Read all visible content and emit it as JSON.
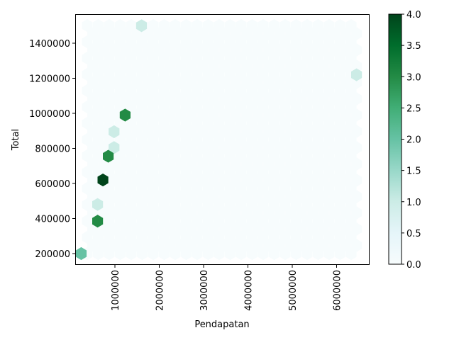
{
  "chart_data": {
    "type": "heatmap",
    "subtype": "hexbin",
    "title": "",
    "xlabel": "Pendapatan",
    "ylabel": "Total",
    "xlim": [
      -50000,
      6800000
    ],
    "ylim": [
      135000,
      1535000
    ],
    "xticks": [
      1000000,
      2000000,
      3000000,
      4000000,
      5000000,
      6000000
    ],
    "xtick_labels": [
      "1000000",
      "2000000",
      "3000000",
      "4000000",
      "5000000",
      "6000000"
    ],
    "xtick_rotation": 90,
    "yticks": [
      200000,
      400000,
      600000,
      800000,
      1000000,
      1200000,
      1400000
    ],
    "ytick_labels": [
      "200000",
      "400000",
      "600000",
      "800000",
      "1000000",
      "1200000",
      "1400000"
    ],
    "grid": false,
    "colormap": "BuGn",
    "colorbar": {
      "min": 0.0,
      "max": 4.0,
      "ticks": [
        0.0,
        0.5,
        1.0,
        1.5,
        2.0,
        2.5,
        3.0,
        3.5,
        4.0
      ],
      "tick_labels": [
        "0.0",
        "0.5",
        "1.0",
        "1.5",
        "2.0",
        "2.5",
        "3.0",
        "3.5",
        "4.0"
      ]
    },
    "background_bin_count": 0,
    "bins": [
      {
        "x": 1600000,
        "y": 1500000,
        "count": 1
      },
      {
        "x": 6450000,
        "y": 1220000,
        "count": 1
      },
      {
        "x": 1230000,
        "y": 990000,
        "count": 3
      },
      {
        "x": 980000,
        "y": 895000,
        "count": 1
      },
      {
        "x": 980000,
        "y": 805000,
        "count": 1
      },
      {
        "x": 850000,
        "y": 755000,
        "count": 3
      },
      {
        "x": 730000,
        "y": 620000,
        "count": 4
      },
      {
        "x": 610000,
        "y": 480000,
        "count": 1
      },
      {
        "x": 610000,
        "y": 385000,
        "count": 3
      },
      {
        "x": 240000,
        "y": 200000,
        "count": 2
      }
    ]
  }
}
